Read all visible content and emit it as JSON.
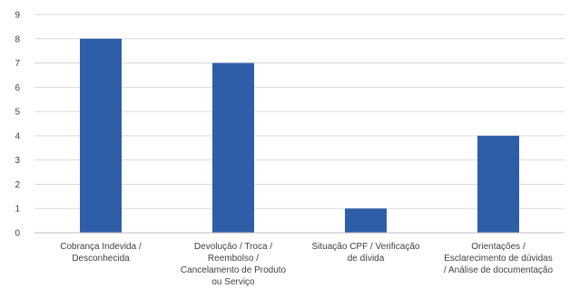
{
  "chart_data": {
    "type": "bar",
    "title": "",
    "xlabel": "",
    "ylabel": "",
    "categories": [
      [
        "Cobrança Indevida /",
        "Desconhecida"
      ],
      [
        "Devolução / Troca /",
        "Reembolso /",
        "Cancelamento de Produto",
        "ou Serviço"
      ],
      [
        "Situação CPF / Verificação",
        "de dívida"
      ],
      [
        "Orientações /",
        "Esclarecimento de dúvidas",
        "/ Análise de documentação"
      ]
    ],
    "values": [
      8,
      7,
      1,
      4
    ],
    "ylim": [
      0,
      9
    ],
    "yticks": [
      0,
      1,
      2,
      3,
      4,
      5,
      6,
      7,
      8,
      9
    ],
    "grid": true,
    "bar_color": "#2f5ea8",
    "grid_color": "#d9d9d9",
    "axis_color": "#bfbfbf"
  }
}
